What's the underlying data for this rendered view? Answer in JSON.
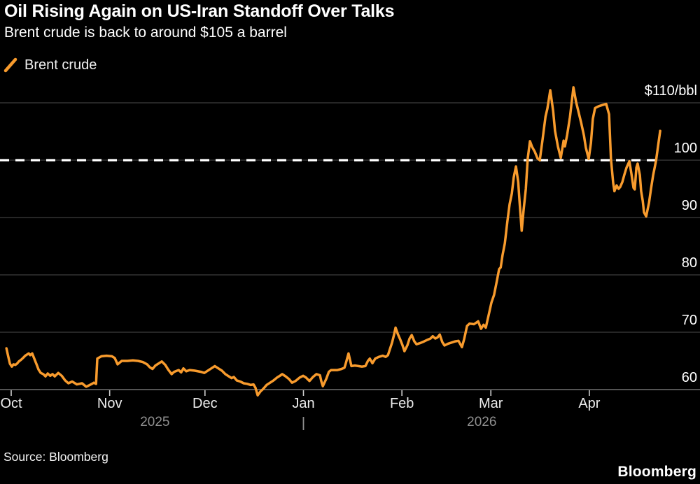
{
  "header": {
    "title": "Oil Rising Again on US-Iran Standoff Over Talks",
    "subtitle": "Brent crude is back to around $105 a barrel"
  },
  "legend": {
    "series_label": "Brent crude"
  },
  "footer": {
    "source": "Source: Bloomberg",
    "brand": "Bloomberg"
  },
  "colors": {
    "background": "#000000",
    "line": "#F89B2D",
    "grid": "#3D3D3D",
    "axis": "#717171",
    "tick": "#CFCFCF",
    "reference": "#FFFFFF",
    "text": "#FFFFFF",
    "muted": "#8F8F8F"
  },
  "chart_data": {
    "type": "line",
    "title": "Oil Rising Again on US-Iran Standoff Over Talks",
    "subtitle": "Brent crude is back to around $105 a barrel",
    "legend_position": "top-left",
    "grid": "horizontal",
    "y_axis": {
      "side": "right",
      "range": [
        57.5,
        113.5
      ],
      "ticks": [
        {
          "value": 110,
          "label": "$110/bbl"
        },
        {
          "value": 100,
          "label": "100"
        },
        {
          "value": 90,
          "label": "90"
        },
        {
          "value": 80,
          "label": "80"
        },
        {
          "value": 70,
          "label": "70"
        },
        {
          "value": 60,
          "label": "60"
        }
      ]
    },
    "x_axis": {
      "unit": "days_from_oct_1_2025",
      "months": [
        {
          "label": "Oct",
          "day": 0
        },
        {
          "label": "Nov",
          "day": 31
        },
        {
          "label": "Dec",
          "day": 61
        },
        {
          "label": "Jan",
          "day": 92
        },
        {
          "label": "Feb",
          "day": 123
        },
        {
          "label": "Mar",
          "day": 151
        },
        {
          "label": "Apr",
          "day": 182
        }
      ],
      "years": [
        {
          "label": "2025",
          "span": [
            -1.5,
            92
          ]
        },
        {
          "label": "2026",
          "span": [
            92,
            204.3
          ]
        }
      ],
      "separator_day": 92
    },
    "reference_line": {
      "value": 100,
      "style": "dashed"
    },
    "series": [
      {
        "name": "Brent crude",
        "unit": "$/bbl",
        "points": [
          [
            -1.5,
            67.2
          ],
          [
            -0.9,
            65.7
          ],
          [
            -0.4,
            64.5
          ],
          [
            0.2,
            64.0
          ],
          [
            0.7,
            64.4
          ],
          [
            1.3,
            64.3
          ],
          [
            1.8,
            64.5
          ],
          [
            2.4,
            64.9
          ],
          [
            3.1,
            65.2
          ],
          [
            3.7,
            65.5
          ],
          [
            4.4,
            65.9
          ],
          [
            5.5,
            66.3
          ],
          [
            6.0,
            66.0
          ],
          [
            6.6,
            66.3
          ],
          [
            7.9,
            64.5
          ],
          [
            8.6,
            63.5
          ],
          [
            9.3,
            62.9
          ],
          [
            10.1,
            62.7
          ],
          [
            10.8,
            62.3
          ],
          [
            11.5,
            62.8
          ],
          [
            12.3,
            62.4
          ],
          [
            13.0,
            62.7
          ],
          [
            13.7,
            62.3
          ],
          [
            14.8,
            62.9
          ],
          [
            15.9,
            62.4
          ],
          [
            17.0,
            61.6
          ],
          [
            18.0,
            61.1
          ],
          [
            19.2,
            61.4
          ],
          [
            20.7,
            60.9
          ],
          [
            22.3,
            61.1
          ],
          [
            23.6,
            60.5
          ],
          [
            25.1,
            60.9
          ],
          [
            26.0,
            61.2
          ],
          [
            26.7,
            61.0
          ],
          [
            27.1,
            65.4
          ],
          [
            28.4,
            65.8
          ],
          [
            30.0,
            65.9
          ],
          [
            31.7,
            65.8
          ],
          [
            32.6,
            65.5
          ],
          [
            33.5,
            64.4
          ],
          [
            34.8,
            65.0
          ],
          [
            36.6,
            65.0
          ],
          [
            38.3,
            65.1
          ],
          [
            39.9,
            65.0
          ],
          [
            41.4,
            64.8
          ],
          [
            42.8,
            64.4
          ],
          [
            43.6,
            63.9
          ],
          [
            44.5,
            63.6
          ],
          [
            45.4,
            64.2
          ],
          [
            47.4,
            64.9
          ],
          [
            48.5,
            64.3
          ],
          [
            49.4,
            63.5
          ],
          [
            50.5,
            62.7
          ],
          [
            51.3,
            63.1
          ],
          [
            52.7,
            63.4
          ],
          [
            53.5,
            63.0
          ],
          [
            54.2,
            63.7
          ],
          [
            55.1,
            63.2
          ],
          [
            56.2,
            63.4
          ],
          [
            57.7,
            63.3
          ],
          [
            59.7,
            63.1
          ],
          [
            60.8,
            62.9
          ],
          [
            61.9,
            63.3
          ],
          [
            63.0,
            63.7
          ],
          [
            64.1,
            64.1
          ],
          [
            65.2,
            63.7
          ],
          [
            66.3,
            63.3
          ],
          [
            67.4,
            62.7
          ],
          [
            68.5,
            62.3
          ],
          [
            69.4,
            62.0
          ],
          [
            70.1,
            62.2
          ],
          [
            71.0,
            61.6
          ],
          [
            72.1,
            61.4
          ],
          [
            73.2,
            61.1
          ],
          [
            74.3,
            61.0
          ],
          [
            75.4,
            60.8
          ],
          [
            76.3,
            60.9
          ],
          [
            76.9,
            60.3
          ],
          [
            77.6,
            59.0
          ],
          [
            78.5,
            59.7
          ],
          [
            79.3,
            60.1
          ],
          [
            80.4,
            60.8
          ],
          [
            81.5,
            61.2
          ],
          [
            82.6,
            61.6
          ],
          [
            83.7,
            62.1
          ],
          [
            84.6,
            62.4
          ],
          [
            85.3,
            62.7
          ],
          [
            86.4,
            62.3
          ],
          [
            87.5,
            61.8
          ],
          [
            88.4,
            61.2
          ],
          [
            89.5,
            61.5
          ],
          [
            90.8,
            62.1
          ],
          [
            91.9,
            62.4
          ],
          [
            92.8,
            62.1
          ],
          [
            93.9,
            61.5
          ],
          [
            95.0,
            62.2
          ],
          [
            96.1,
            62.7
          ],
          [
            97.2,
            62.5
          ],
          [
            97.6,
            61.5
          ],
          [
            98.1,
            60.6
          ],
          [
            99.2,
            61.9
          ],
          [
            100.0,
            63.1
          ],
          [
            100.7,
            63.4
          ],
          [
            102.7,
            63.4
          ],
          [
            104.0,
            63.6
          ],
          [
            104.9,
            63.8
          ],
          [
            105.2,
            64.3
          ],
          [
            106.2,
            66.3
          ],
          [
            107.1,
            64.1
          ],
          [
            108.2,
            64.2
          ],
          [
            109.3,
            64.1
          ],
          [
            110.4,
            64.0
          ],
          [
            111.5,
            64.1
          ],
          [
            112.3,
            65.0
          ],
          [
            112.9,
            65.4
          ],
          [
            113.7,
            64.6
          ],
          [
            114.6,
            65.4
          ],
          [
            115.7,
            65.7
          ],
          [
            117.0,
            65.9
          ],
          [
            117.9,
            65.7
          ],
          [
            118.6,
            66.0
          ],
          [
            119.2,
            67.0
          ],
          [
            119.9,
            68.2
          ],
          [
            120.5,
            69.5
          ],
          [
            121.0,
            70.8
          ],
          [
            121.7,
            69.7
          ],
          [
            122.5,
            68.7
          ],
          [
            123.2,
            67.7
          ],
          [
            123.8,
            66.7
          ],
          [
            124.7,
            67.7
          ],
          [
            125.4,
            68.9
          ],
          [
            126.1,
            69.5
          ],
          [
            126.9,
            68.4
          ],
          [
            127.6,
            67.9
          ],
          [
            128.7,
            68.1
          ],
          [
            130.0,
            68.4
          ],
          [
            131.1,
            68.7
          ],
          [
            132.0,
            68.9
          ],
          [
            132.7,
            69.3
          ],
          [
            133.5,
            68.9
          ],
          [
            134.2,
            69.1
          ],
          [
            134.9,
            69.6
          ],
          [
            135.7,
            68.3
          ],
          [
            136.4,
            67.7
          ],
          [
            137.5,
            68.0
          ],
          [
            138.6,
            68.2
          ],
          [
            139.7,
            68.4
          ],
          [
            140.8,
            68.5
          ],
          [
            141.9,
            67.4
          ],
          [
            142.6,
            68.8
          ],
          [
            143.5,
            71.1
          ],
          [
            144.3,
            71.5
          ],
          [
            145.7,
            71.4
          ],
          [
            147.0,
            71.9
          ],
          [
            147.9,
            70.6
          ],
          [
            148.7,
            71.3
          ],
          [
            149.4,
            70.8
          ],
          [
            150.3,
            73.0
          ],
          [
            151.2,
            75.2
          ],
          [
            152.0,
            76.5
          ],
          [
            152.9,
            79.0
          ],
          [
            153.6,
            81.0
          ],
          [
            154.1,
            81.3
          ],
          [
            154.7,
            83.5
          ],
          [
            155.4,
            85.5
          ],
          [
            156.2,
            89.3
          ],
          [
            156.9,
            92.3
          ],
          [
            157.6,
            94.2
          ],
          [
            158.2,
            97.0
          ],
          [
            158.9,
            98.9
          ],
          [
            159.6,
            96.2
          ],
          [
            160.0,
            93.0
          ],
          [
            160.7,
            87.7
          ],
          [
            161.3,
            91.3
          ],
          [
            162.0,
            95.0
          ],
          [
            162.6,
            100.3
          ],
          [
            163.3,
            103.3
          ],
          [
            164.0,
            102.3
          ],
          [
            164.8,
            101.5
          ],
          [
            165.7,
            100.3
          ],
          [
            166.4,
            100.0
          ],
          [
            167.3,
            103.7
          ],
          [
            168.2,
            107.6
          ],
          [
            168.8,
            109.0
          ],
          [
            169.7,
            112.2
          ],
          [
            170.6,
            108.6
          ],
          [
            171.2,
            105.1
          ],
          [
            172.1,
            102.4
          ],
          [
            173.0,
            100.4
          ],
          [
            173.9,
            103.4
          ],
          [
            174.3,
            102.4
          ],
          [
            175.0,
            104.4
          ],
          [
            175.9,
            107.5
          ],
          [
            177.0,
            112.7
          ],
          [
            177.8,
            110.2
          ],
          [
            178.7,
            108.2
          ],
          [
            179.4,
            106.6
          ],
          [
            180.3,
            104.3
          ],
          [
            180.9,
            102.2
          ],
          [
            181.8,
            100.2
          ],
          [
            182.5,
            103.0
          ],
          [
            183.1,
            107.2
          ],
          [
            183.8,
            109.1
          ],
          [
            184.9,
            109.4
          ],
          [
            186.0,
            109.6
          ],
          [
            187.3,
            109.8
          ],
          [
            188.2,
            108.0
          ],
          [
            188.8,
            100.2
          ],
          [
            189.5,
            96.0
          ],
          [
            189.9,
            94.6
          ],
          [
            190.6,
            95.6
          ],
          [
            191.2,
            95.0
          ],
          [
            191.7,
            95.3
          ],
          [
            192.4,
            96.2
          ],
          [
            193.0,
            97.4
          ],
          [
            193.7,
            98.7
          ],
          [
            194.6,
            99.8
          ],
          [
            195.2,
            97.8
          ],
          [
            195.9,
            95.2
          ],
          [
            196.3,
            94.9
          ],
          [
            196.8,
            98.7
          ],
          [
            197.2,
            99.4
          ],
          [
            197.9,
            97.4
          ],
          [
            198.3,
            94.6
          ],
          [
            198.8,
            92.9
          ],
          [
            199.2,
            90.9
          ],
          [
            199.9,
            90.2
          ],
          [
            200.8,
            92.6
          ],
          [
            201.4,
            95.0
          ],
          [
            202.1,
            97.4
          ],
          [
            203.0,
            99.9
          ],
          [
            203.6,
            102.3
          ],
          [
            204.3,
            105.1
          ]
        ]
      }
    ]
  }
}
